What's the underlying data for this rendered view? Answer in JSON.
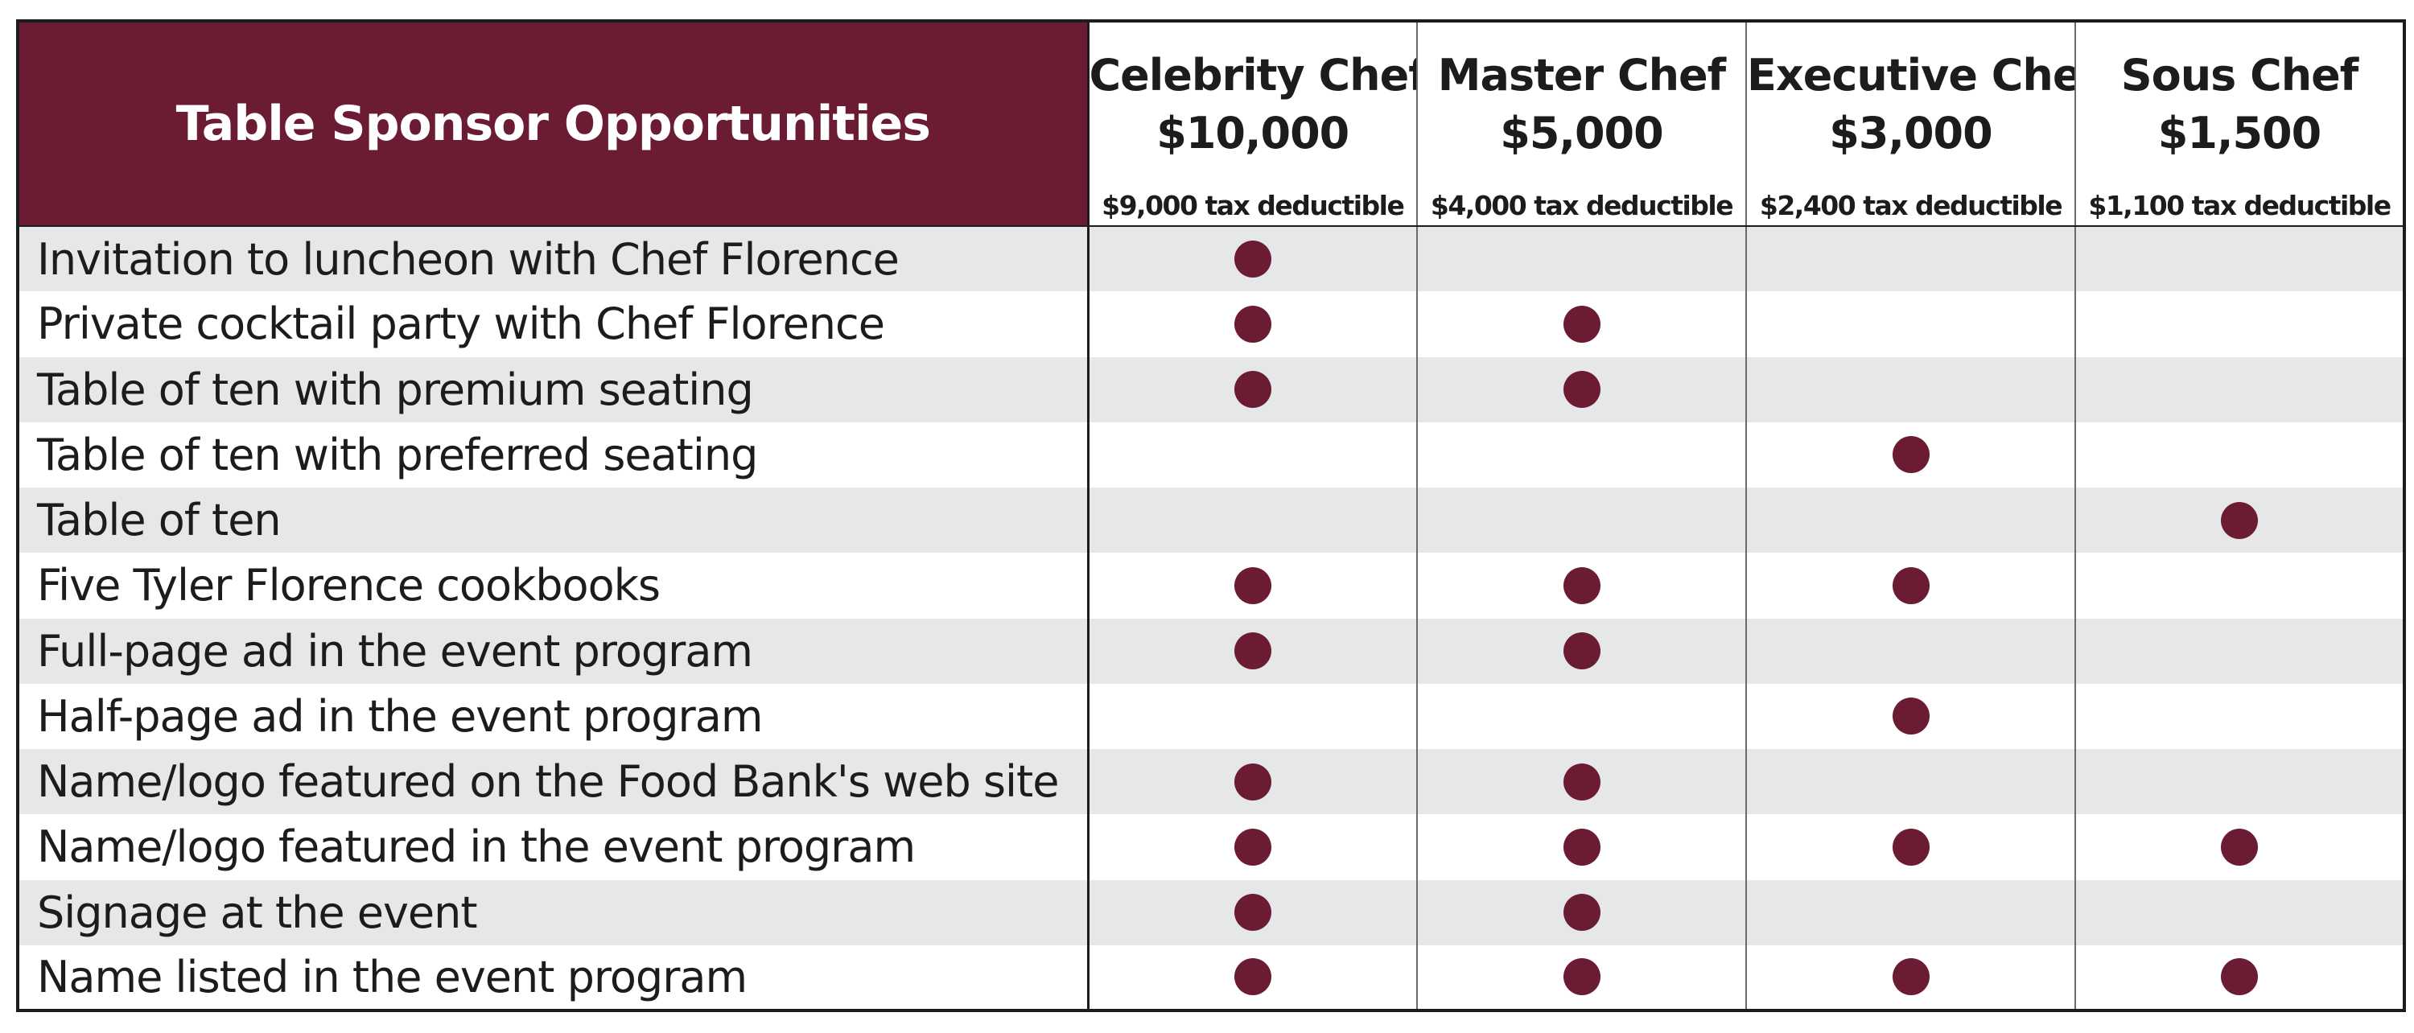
{
  "title": "Table Sponsor Opportunities",
  "colors": {
    "header_background": "#6b1b32",
    "dot": "#6b1b32",
    "row_shade": "#e6e7e8"
  },
  "tiers": [
    {
      "name": "Celebrity Chef",
      "price": "$10,000",
      "deductible": "$9,000 tax deductible"
    },
    {
      "name": "Master Chef",
      "price": "$5,000",
      "deductible": "$4,000 tax deductible"
    },
    {
      "name": "Executive Chef",
      "price": "$3,000",
      "deductible": "$2,400 tax deductible"
    },
    {
      "name": "Sous Chef",
      "price": "$1,500",
      "deductible": "$1,100 tax deductible"
    }
  ],
  "benefits": [
    {
      "label": "Invitation to luncheon with Chef Florence",
      "included": [
        true,
        false,
        false,
        false
      ]
    },
    {
      "label": "Private cocktail party with Chef Florence",
      "included": [
        true,
        true,
        false,
        false
      ]
    },
    {
      "label": "Table of ten with premium seating",
      "included": [
        true,
        true,
        false,
        false
      ]
    },
    {
      "label": "Table of ten with preferred seating",
      "included": [
        false,
        false,
        true,
        false
      ]
    },
    {
      "label": "Table of ten",
      "included": [
        false,
        false,
        false,
        true
      ]
    },
    {
      "label": "Five Tyler Florence cookbooks",
      "included": [
        true,
        true,
        true,
        false
      ]
    },
    {
      "label": "Full-page ad in the event program",
      "included": [
        true,
        true,
        false,
        false
      ]
    },
    {
      "label": "Half-page ad in the event program",
      "included": [
        false,
        false,
        true,
        false
      ]
    },
    {
      "label": "Name/logo featured on the Food Bank's web site",
      "included": [
        true,
        true,
        false,
        false
      ]
    },
    {
      "label": "Name/logo featured in the event program",
      "included": [
        true,
        true,
        true,
        true
      ]
    },
    {
      "label": "Signage at the event",
      "included": [
        true,
        true,
        false,
        false
      ]
    },
    {
      "label": "Name listed in the event program",
      "included": [
        true,
        true,
        true,
        true
      ]
    }
  ]
}
